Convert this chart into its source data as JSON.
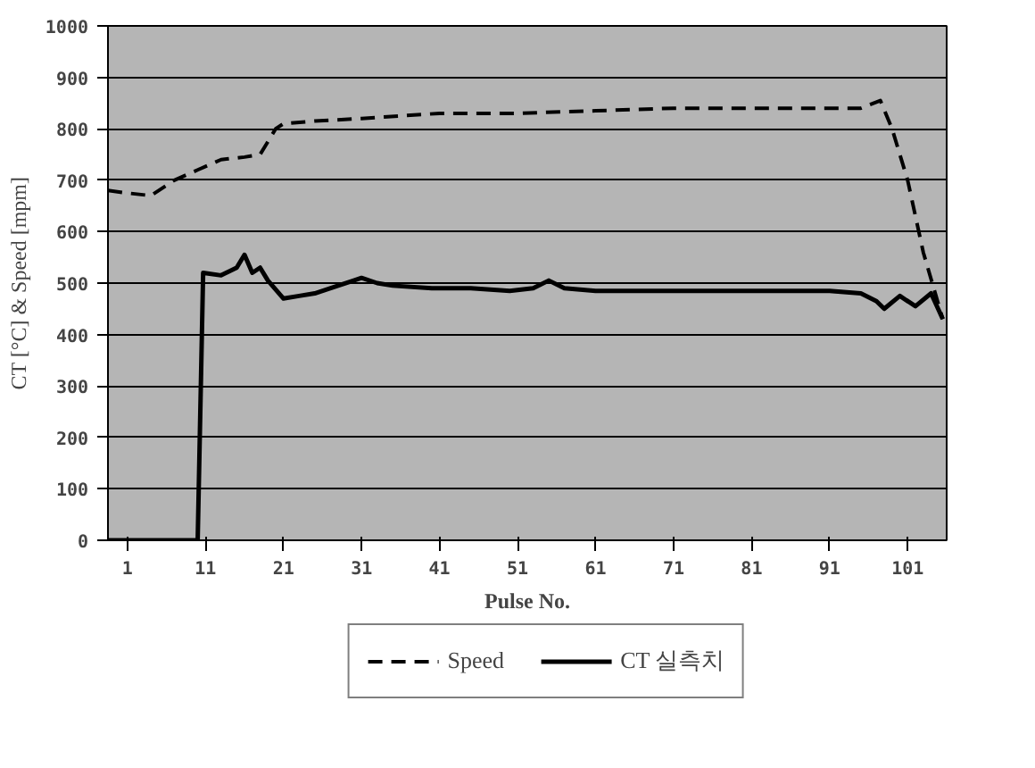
{
  "chart_data": {
    "type": "line",
    "xlabel": "Pulse No.",
    "ylabel": "CT [°C] & Speed [mpm]",
    "xlim": [
      -1.5,
      106
    ],
    "xticks": [
      1,
      11,
      21,
      31,
      41,
      51,
      61,
      71,
      81,
      91,
      101
    ],
    "ylim": [
      0,
      1000
    ],
    "yticks": [
      0,
      100,
      200,
      300,
      400,
      500,
      600,
      700,
      800,
      900,
      1000
    ],
    "grid": "y",
    "legend": "bottom",
    "marker": "none",
    "series": [
      {
        "name": "Speed",
        "color": "#000000",
        "line_style": "dashed",
        "x": [
          -1.5,
          1,
          4,
          7,
          10,
          13,
          16,
          18,
          20,
          21,
          25,
          31,
          41,
          51,
          61,
          71,
          81,
          91,
          95,
          97.5,
          99,
          101,
          103,
          105.5
        ],
        "values": [
          680,
          675,
          670,
          700,
          720,
          740,
          745,
          750,
          800,
          810,
          815,
          820,
          830,
          830,
          835,
          840,
          840,
          840,
          840,
          855,
          800,
          700,
          560,
          430
        ]
      },
      {
        "name": "CT 실측치",
        "color": "#000000",
        "line_style": "solid",
        "x": [
          -1.5,
          5,
          10,
          10.7,
          13,
          15,
          16,
          17,
          18,
          19,
          21,
          23,
          25,
          28,
          30,
          31,
          33,
          35,
          40,
          45,
          50,
          53,
          55,
          57,
          61,
          71,
          81,
          91,
          95,
          97,
          98,
          100,
          102,
          104,
          105.5
        ],
        "values": [
          0,
          0,
          0,
          520,
          515,
          530,
          555,
          520,
          530,
          505,
          470,
          475,
          480,
          495,
          505,
          510,
          500,
          495,
          490,
          490,
          485,
          490,
          505,
          490,
          485,
          485,
          485,
          485,
          480,
          465,
          450,
          475,
          455,
          480,
          430
        ]
      }
    ]
  }
}
